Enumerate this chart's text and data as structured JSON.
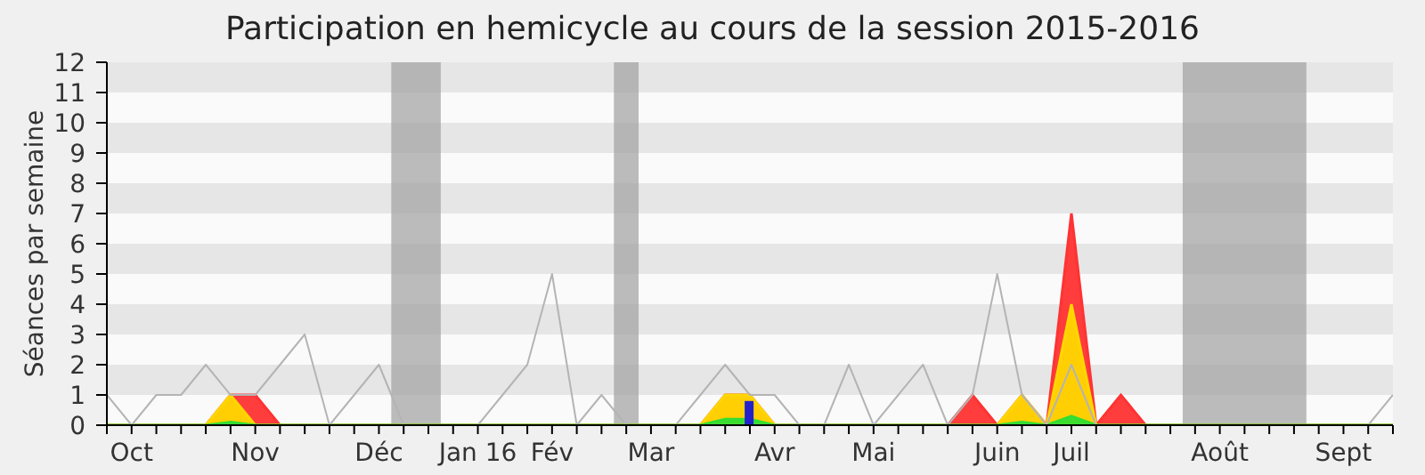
{
  "chart_data": {
    "type": "area",
    "title": "Participation en hemicycle au cours de la session 2015-2016",
    "ylabel": "Séances par semaine",
    "categories": [
      null,
      "Oct",
      null,
      null,
      null,
      null,
      "Nov",
      null,
      null,
      null,
      null,
      "Déc",
      null,
      null,
      null,
      "Jan 16",
      null,
      null,
      "Fév",
      null,
      null,
      null,
      "Mar",
      null,
      null,
      null,
      null,
      "Avr",
      null,
      null,
      null,
      "Mai",
      null,
      null,
      null,
      null,
      "Juin",
      null,
      null,
      "Juil",
      null,
      null,
      null,
      null,
      null,
      "Août",
      null,
      null,
      null,
      null,
      "Sept",
      null,
      null
    ],
    "series": [
      {
        "type": "line",
        "color": "#b4b4b4",
        "values": [
          1,
          0,
          1,
          1,
          2,
          1,
          1,
          2,
          3,
          0,
          1,
          2,
          0,
          0,
          0,
          0,
          1,
          2,
          5,
          0,
          1,
          0,
          0,
          0,
          1,
          2,
          1,
          1,
          0,
          0,
          2,
          0,
          1,
          2,
          0,
          1,
          5,
          1,
          0,
          2,
          0,
          0,
          0,
          0,
          0,
          0,
          0,
          0,
          0,
          0,
          0,
          0,
          1
        ]
      },
      {
        "color": "#ff3333",
        "values": [
          0,
          0,
          0,
          0,
          0,
          1,
          1,
          0,
          0,
          0,
          0,
          0,
          0,
          0,
          0,
          0,
          0,
          0,
          0,
          0,
          0,
          0,
          0,
          0,
          0,
          1,
          1,
          0,
          0,
          0,
          0,
          0,
          0,
          0,
          0,
          1,
          0,
          1,
          0,
          7,
          0,
          1,
          0,
          0,
          0,
          0,
          0,
          0,
          0,
          0,
          0,
          0,
          0
        ]
      },
      {
        "color": "#ffd700",
        "values": [
          0,
          0,
          0,
          0,
          0,
          1,
          0,
          0,
          0,
          0,
          0,
          0,
          0,
          0,
          0,
          0,
          0,
          0,
          0,
          0,
          0,
          0,
          0,
          0,
          0,
          1,
          1,
          0,
          0,
          0,
          0,
          0,
          0,
          0,
          0,
          0,
          0,
          1,
          0,
          4,
          0,
          0,
          0,
          0,
          0,
          0,
          0,
          0,
          0,
          0,
          0,
          0,
          0
        ]
      },
      {
        "color": "#33dd33",
        "values": [
          0,
          0,
          0,
          0,
          0,
          0.1,
          0,
          0,
          0,
          0,
          0,
          0,
          0,
          0,
          0,
          0,
          0,
          0,
          0,
          0,
          0,
          0,
          0,
          0,
          0,
          0.2,
          0.2,
          0,
          0,
          0,
          0,
          0,
          0,
          0,
          0,
          0,
          0,
          0.1,
          0,
          0.3,
          0,
          0,
          0,
          0,
          0,
          0,
          0,
          0,
          0,
          0,
          0,
          0,
          0
        ]
      },
      {
        "type": "bar",
        "color": "#2222cc",
        "values": [
          null,
          null,
          null,
          null,
          null,
          null,
          null,
          null,
          null,
          null,
          null,
          null,
          null,
          null,
          null,
          null,
          null,
          null,
          null,
          null,
          null,
          null,
          null,
          null,
          null,
          null,
          0.8,
          null,
          null,
          null,
          null,
          null,
          null,
          null,
          null,
          null,
          null,
          null,
          null,
          null,
          null,
          null,
          null,
          null,
          null,
          null,
          null,
          null,
          null,
          null,
          null,
          null,
          null
        ]
      }
    ],
    "ylim": [
      0,
      12
    ],
    "yticks": [
      0,
      1,
      2,
      3,
      4,
      5,
      6,
      7,
      8,
      9,
      10,
      11,
      12
    ],
    "marker": "none"
  }
}
